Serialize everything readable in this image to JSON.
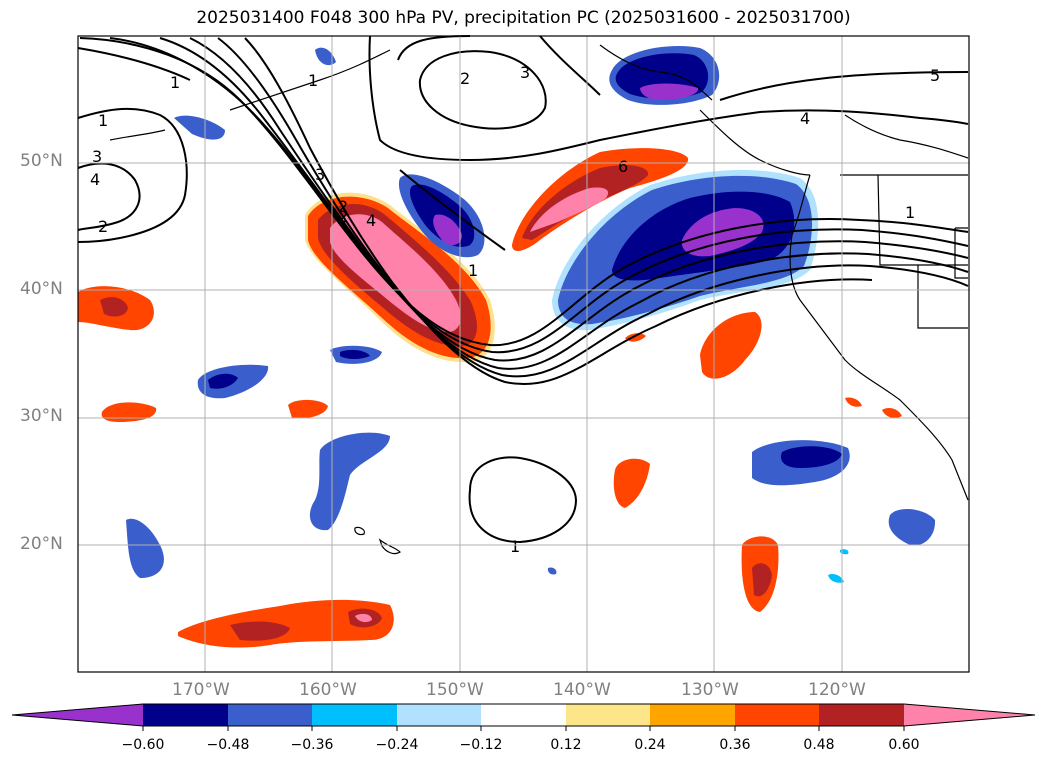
{
  "title": "2025031400 F048 300 hPa PV, precipitation PC (2025031600 - 2025031700)",
  "lat_labels": [
    "50°N",
    "40°N",
    "30°N",
    "20°N"
  ],
  "lon_labels": [
    "170°W",
    "160°W",
    "150°W",
    "140°W",
    "130°W",
    "120°W"
  ],
  "colorbar": {
    "ticks": [
      "−0.60",
      "−0.48",
      "−0.36",
      "−0.24",
      "−0.12",
      "0.12",
      "0.24",
      "0.36",
      "0.48",
      "0.60"
    ],
    "colors": [
      "#9932cc",
      "#00008b",
      "#3a5fcd",
      "#00bfff",
      "#b0e2ff",
      "#ffffff",
      "#fde68a",
      "#ffa500",
      "#ff4500",
      "#b22222",
      "#ff82ab"
    ]
  },
  "contour_labels": [
    "1",
    "1",
    "3",
    "4",
    "2",
    "1",
    "3",
    "2",
    "3",
    "2",
    "4",
    "5",
    "4",
    "6",
    "1",
    "1",
    "1",
    "2"
  ],
  "map_colors": {
    "positive_strong": "#ff82ab",
    "positive_mid": "#b22222",
    "positive_low": "#ff4500",
    "negative_strong": "#9932cc",
    "negative_mid": "#00008b",
    "negative_low": "#3a5fcd",
    "grid": "#b0b0b0"
  }
}
